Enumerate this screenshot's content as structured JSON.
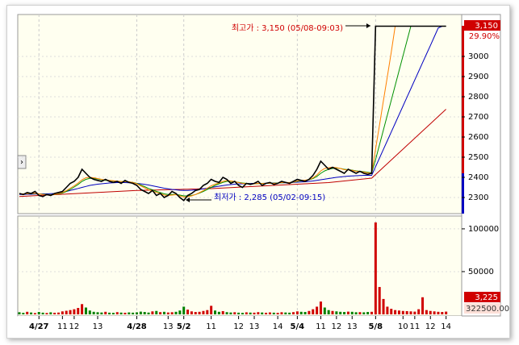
{
  "chart_data": [
    {
      "type": "line",
      "ylim": [
        2220,
        3208
      ],
      "yticks": [
        2300,
        2400,
        2500,
        2600,
        2700,
        2800,
        2900,
        3000
      ],
      "high_annotation": "최고가 : 3,150 (05/08-09:03)",
      "low_annotation": "최저가 : 2,285 (05/02-09:15)",
      "last_value_label": "3,150",
      "change_label": "29.90%",
      "categories": [
        null,
        null,
        null,
        null,
        null,
        "4/27",
        null,
        null,
        null,
        null,
        null,
        "11",
        null,
        null,
        "12",
        null,
        null,
        null,
        null,
        null,
        "13",
        null,
        null,
        null,
        null,
        null,
        null,
        null,
        null,
        null,
        "4/28",
        null,
        null,
        null,
        null,
        null,
        null,
        null,
        "13",
        null,
        null,
        null,
        "5/2",
        null,
        null,
        null,
        null,
        null,
        null,
        "11",
        null,
        null,
        null,
        null,
        null,
        null,
        "12",
        null,
        null,
        null,
        "13",
        null,
        null,
        null,
        null,
        null,
        "14",
        null,
        null,
        null,
        null,
        "5/4",
        null,
        null,
        null,
        null,
        null,
        "11",
        null,
        null,
        null,
        "12",
        null,
        null,
        null,
        "13",
        null,
        null,
        null,
        null,
        null,
        "5/8",
        null,
        null,
        null,
        null,
        null,
        null,
        "10",
        null,
        null,
        "11",
        null,
        null,
        null,
        "12",
        null,
        null,
        null,
        "14"
      ],
      "series": [
        {
          "name": "price",
          "color": "#000000",
          "values": [
            2320,
            2315,
            2325,
            2320,
            2330,
            2310,
            2305,
            2315,
            2310,
            2320,
            2325,
            2330,
            2350,
            2370,
            2380,
            2400,
            2440,
            2420,
            2400,
            2390,
            2385,
            2380,
            2390,
            2380,
            2375,
            2380,
            2370,
            2385,
            2375,
            2370,
            2360,
            2340,
            2330,
            2320,
            2335,
            2310,
            2320,
            2300,
            2310,
            2330,
            2320,
            2300,
            2285,
            2310,
            2320,
            2335,
            2340,
            2360,
            2370,
            2390,
            2380,
            2375,
            2400,
            2390,
            2370,
            2380,
            2360,
            2350,
            2370,
            2365,
            2370,
            2380,
            2360,
            2370,
            2375,
            2365,
            2370,
            2380,
            2375,
            2370,
            2380,
            2390,
            2385,
            2380,
            2390,
            2410,
            2440,
            2480,
            2460,
            2440,
            2450,
            2440,
            2430,
            2420,
            2440,
            2430,
            2420,
            2430,
            2420,
            2415,
            2420,
            3150,
            3150,
            3150,
            3150,
            3150,
            3150,
            3150,
            3150,
            3150,
            3150,
            3150,
            3150,
            3150,
            3150,
            3150,
            3150,
            3150,
            3150,
            3150
          ]
        },
        {
          "name": "ma-orange",
          "color": "#ff8000",
          "values": [
            2318,
            2318,
            2319,
            2320,
            2321,
            2318,
            2315,
            2314,
            2313,
            2315,
            2320,
            2325,
            2334,
            2346,
            2358,
            2372,
            2388,
            2398,
            2400,
            2398,
            2394,
            2390,
            2387,
            2385,
            2383,
            2381,
            2379,
            2379,
            2378,
            2375,
            2368,
            2358,
            2348,
            2338,
            2332,
            2325,
            2320,
            2312,
            2310,
            2312,
            2314,
            2308,
            2302,
            2304,
            2308,
            2315,
            2324,
            2334,
            2346,
            2358,
            2366,
            2372,
            2380,
            2384,
            2382,
            2379,
            2374,
            2370,
            2368,
            2367,
            2368,
            2370,
            2369,
            2370,
            2371,
            2370,
            2371,
            2374,
            2375,
            2374,
            2377,
            2382,
            2385,
            2386,
            2389,
            2397,
            2412,
            2432,
            2444,
            2448,
            2450,
            2448,
            2444,
            2438,
            2437,
            2435,
            2430,
            2429,
            2426,
            2422,
            2420,
            2540,
            2660,
            2780,
            2900,
            3020,
            3150,
            3150,
            3150,
            3150,
            3150,
            3150,
            3150,
            3150,
            3150,
            3150,
            3150,
            3150,
            3150,
            3150
          ]
        },
        {
          "name": "ma-green",
          "color": "#009000",
          "values": [
            2318,
            2318,
            2319,
            2319,
            2320,
            2318,
            2316,
            2315,
            2314,
            2315,
            2318,
            2322,
            2330,
            2340,
            2352,
            2365,
            2380,
            2390,
            2395,
            2395,
            2392,
            2388,
            2385,
            2384,
            2382,
            2380,
            2379,
            2378,
            2377,
            2375,
            2370,
            2362,
            2354,
            2345,
            2338,
            2330,
            2325,
            2318,
            2315,
            2315,
            2315,
            2312,
            2308,
            2308,
            2310,
            2315,
            2322,
            2330,
            2340,
            2350,
            2360,
            2368,
            2375,
            2380,
            2380,
            2378,
            2375,
            2372,
            2370,
            2368,
            2368,
            2369,
            2370,
            2370,
            2371,
            2371,
            2372,
            2373,
            2374,
            2374,
            2376,
            2380,
            2383,
            2385,
            2388,
            2394,
            2405,
            2420,
            2432,
            2440,
            2444,
            2446,
            2444,
            2440,
            2438,
            2436,
            2432,
            2430,
            2428,
            2425,
            2422,
            2488,
            2562,
            2635,
            2709,
            2782,
            2856,
            2929,
            3003,
            3076,
            3150,
            3150,
            3150,
            3150,
            3150,
            3150,
            3150,
            3150,
            3150,
            3150
          ]
        },
        {
          "name": "ma-blue",
          "color": "#0000c0",
          "values": [
            2315,
            2315,
            2316,
            2316,
            2317,
            2317,
            2318,
            2318,
            2319,
            2320,
            2322,
            2325,
            2330,
            2335,
            2340,
            2345,
            2350,
            2355,
            2360,
            2363,
            2366,
            2368,
            2370,
            2372,
            2373,
            2374,
            2374,
            2374,
            2373,
            2372,
            2370,
            2368,
            2365,
            2362,
            2358,
            2354,
            2350,
            2346,
            2343,
            2340,
            2338,
            2336,
            2335,
            2335,
            2336,
            2338,
            2340,
            2343,
            2346,
            2350,
            2353,
            2356,
            2359,
            2362,
            2364,
            2366,
            2367,
            2368,
            2369,
            2370,
            2370,
            2370,
            2370,
            2371,
            2371,
            2372,
            2372,
            2373,
            2373,
            2374,
            2375,
            2376,
            2377,
            2378,
            2380,
            2382,
            2385,
            2388,
            2391,
            2394,
            2397,
            2400,
            2402,
            2404,
            2406,
            2407,
            2408,
            2409,
            2410,
            2410,
            2410,
            2453,
            2496,
            2539,
            2582,
            2625,
            2668,
            2711,
            2754,
            2797,
            2840,
            2883,
            2926,
            2969,
            3012,
            3055,
            3098,
            3141,
            3150,
            3150
          ]
        },
        {
          "name": "ma-red",
          "color": "#c00000",
          "values": [
            2305,
            2306,
            2307,
            2308,
            2309,
            2310,
            2311,
            2312,
            2313,
            2314,
            2315,
            2316,
            2317,
            2318,
            2319,
            2320,
            2321,
            2322,
            2323,
            2324,
            2325,
            2326,
            2327,
            2328,
            2329,
            2330,
            2331,
            2332,
            2333,
            2334,
            2335,
            2335,
            2336,
            2336,
            2337,
            2337,
            2338,
            2338,
            2339,
            2339,
            2340,
            2340,
            2341,
            2341,
            2342,
            2342,
            2343,
            2343,
            2344,
            2344,
            2345,
            2346,
            2347,
            2348,
            2349,
            2350,
            2351,
            2352,
            2353,
            2354,
            2355,
            2356,
            2357,
            2358,
            2359,
            2360,
            2361,
            2362,
            2363,
            2364,
            2365,
            2366,
            2367,
            2368,
            2369,
            2370,
            2371,
            2372,
            2373,
            2374,
            2376,
            2378,
            2380,
            2382,
            2384,
            2386,
            2388,
            2390,
            2392,
            2394,
            2396,
            2414,
            2432,
            2450,
            2468,
            2486,
            2504,
            2522,
            2540,
            2558,
            2576,
            2594,
            2612,
            2630,
            2648,
            2666,
            2684,
            2702,
            2720,
            2738
          ]
        }
      ]
    },
    {
      "type": "bar",
      "ylim": [
        0,
        115000
      ],
      "yticks": [
        100000,
        50000
      ],
      "up_color": "#d00000",
      "down_color": "#008000",
      "last_value_label": "3,225",
      "extra_label": "322500.00",
      "values": [
        2500,
        1800,
        3000,
        2200,
        1500,
        2800,
        2000,
        1600,
        2400,
        1900,
        2100,
        3500,
        4200,
        5000,
        6000,
        7500,
        12000,
        8000,
        4500,
        3000,
        2500,
        2200,
        3000,
        2000,
        1800,
        2600,
        2100,
        1900,
        2300,
        2000,
        2400,
        3200,
        2800,
        2100,
        3500,
        4000,
        2600,
        3000,
        2200,
        2500,
        3000,
        4500,
        9000,
        5500,
        3500,
        2800,
        3000,
        4000,
        5000,
        10000,
        4500,
        3000,
        3800,
        2600,
        2200,
        2500,
        2000,
        1800,
        2400,
        2100,
        2000,
        2600,
        2200,
        1900,
        2300,
        2000,
        1800,
        2500,
        2200,
        2000,
        2600,
        3500,
        3000,
        2800,
        4000,
        6000,
        9000,
        15000,
        8000,
        5000,
        4000,
        3500,
        3000,
        2800,
        3200,
        3000,
        2500,
        2600,
        2400,
        2800,
        3000,
        107500,
        32000,
        18000,
        9000,
        6500,
        5000,
        4500,
        4000,
        3800,
        3500,
        3200,
        6000,
        20000,
        5000,
        4000,
        3500,
        3000,
        2800,
        3225
      ]
    }
  ]
}
